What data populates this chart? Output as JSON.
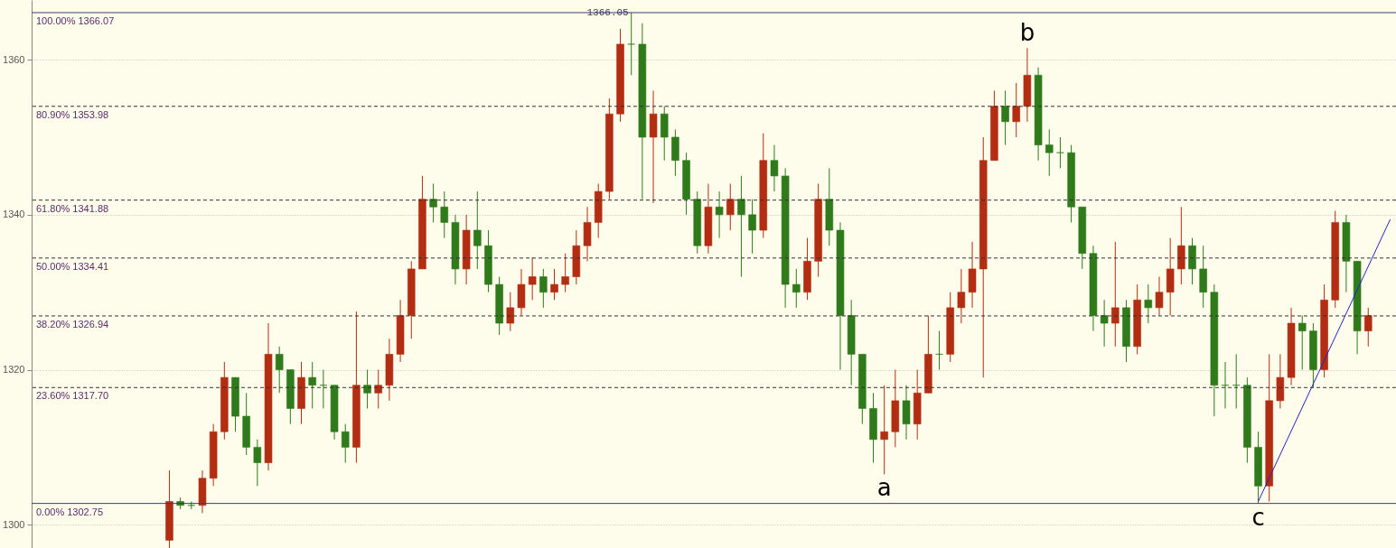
{
  "chart_data": {
    "type": "candlestick",
    "categories": [
      null,
      null,
      null,
      null,
      null,
      null,
      null,
      null,
      null,
      null,
      null,
      null,
      null,
      null,
      null,
      null,
      null,
      null,
      null,
      null,
      null,
      null,
      null,
      null,
      null,
      null,
      null,
      null,
      null,
      null,
      null,
      null,
      null,
      null,
      null,
      null,
      null,
      null,
      null,
      null,
      null,
      null,
      null,
      null,
      null,
      null,
      null,
      null,
      null,
      null,
      null,
      null,
      null,
      null,
      null,
      null,
      null,
      null,
      null,
      null,
      null,
      null,
      null,
      null,
      null,
      null,
      null,
      null,
      null,
      null,
      null,
      null,
      null,
      null,
      null,
      null,
      null,
      null,
      null,
      null,
      null,
      null,
      null,
      null,
      null,
      null,
      null,
      null,
      null,
      null,
      null,
      null,
      null,
      null,
      null,
      null,
      null,
      null,
      null,
      null,
      null,
      null,
      null,
      null,
      null,
      null,
      null,
      null,
      null,
      null,
      null,
      null,
      null,
      null,
      null,
      null,
      null,
      null,
      null,
      null,
      null,
      null,
      null,
      null
    ],
    "ohlc": [
      null,
      null,
      null,
      null,
      null,
      null,
      null,
      null,
      null,
      null,
      null,
      null,
      [
        1298,
        1307,
        1297,
        1303
      ],
      [
        1303,
        1303.5,
        1302,
        1302.5
      ],
      [
        1302.5,
        1303,
        1302,
        1302.5
      ],
      [
        1302.5,
        1307,
        1301.5,
        1306
      ],
      [
        1306,
        1313,
        1305,
        1312
      ],
      [
        1312,
        1321,
        1311,
        1319
      ],
      [
        1319,
        1319,
        1312,
        1314
      ],
      [
        1314,
        1317,
        1309,
        1310
      ],
      [
        1310,
        1311,
        1305,
        1308
      ],
      [
        1308,
        1326,
        1307,
        1322
      ],
      [
        1322,
        1323,
        1317,
        1320
      ],
      [
        1320,
        1320,
        1313,
        1315
      ],
      [
        1315,
        1321,
        1313,
        1319
      ],
      [
        1319,
        1321,
        1315,
        1318
      ],
      [
        1318,
        1320,
        1315,
        1318
      ],
      [
        1318,
        1318,
        1311,
        1312
      ],
      [
        1312,
        1313,
        1308,
        1310
      ],
      [
        1310,
        1327.5,
        1308,
        1318
      ],
      [
        1318,
        1320,
        1315,
        1317
      ],
      [
        1317,
        1320,
        1315,
        1318
      ],
      [
        1318,
        1324,
        1316,
        1322
      ],
      [
        1322,
        1329,
        1321,
        1327
      ],
      [
        1327,
        1334,
        1324,
        1333
      ],
      [
        1333,
        1345,
        1333,
        1342
      ],
      [
        1342,
        1344,
        1339,
        1341
      ],
      [
        1341,
        1343,
        1337,
        1339
      ],
      [
        1339,
        1340,
        1331,
        1333
      ],
      [
        1333,
        1340,
        1331,
        1338
      ],
      [
        1338,
        1343,
        1333,
        1336
      ],
      [
        1336,
        1338,
        1330,
        1331
      ],
      [
        1331,
        1332,
        1324.5,
        1326
      ],
      [
        1326,
        1330,
        1325,
        1328
      ],
      [
        1328,
        1333,
        1327,
        1331
      ],
      [
        1331,
        1334.5,
        1329,
        1332
      ],
      [
        1332,
        1333,
        1328,
        1330
      ],
      [
        1330,
        1333,
        1329,
        1331
      ],
      [
        1331,
        1335,
        1330,
        1332
      ],
      [
        1332,
        1338,
        1331,
        1336
      ],
      [
        1336,
        1341,
        1334,
        1339
      ],
      [
        1339,
        1344,
        1337,
        1343
      ],
      [
        1343,
        1355,
        1342,
        1353
      ],
      [
        1353,
        1364,
        1352,
        1362
      ],
      [
        1362,
        1366.05,
        1358,
        1362
      ],
      [
        1362,
        1364.7,
        1342,
        1350
      ],
      [
        1350,
        1356,
        1341.5,
        1353
      ],
      [
        1353,
        1354,
        1347,
        1350
      ],
      [
        1350,
        1351,
        1345,
        1347
      ],
      [
        1347,
        1348,
        1340,
        1342
      ],
      [
        1342,
        1343,
        1335,
        1336
      ],
      [
        1336,
        1344,
        1335,
        1341
      ],
      [
        1341,
        1343,
        1337,
        1340
      ],
      [
        1340,
        1344,
        1338,
        1342
      ],
      [
        1342,
        1345,
        1332,
        1340
      ],
      [
        1340,
        1342,
        1335,
        1338
      ],
      [
        1338,
        1350.5,
        1337,
        1347
      ],
      [
        1347,
        1349,
        1343,
        1345
      ],
      [
        1345,
        1346,
        1328,
        1331
      ],
      [
        1331,
        1333,
        1328,
        1330
      ],
      [
        1330,
        1337,
        1329,
        1334
      ],
      [
        1334,
        1344,
        1332,
        1342
      ],
      [
        1342,
        1346,
        1336,
        1338
      ],
      [
        1338,
        1339,
        1320,
        1327
      ],
      [
        1327,
        1329,
        1318,
        1322
      ],
      [
        1322,
        1322,
        1313,
        1315
      ],
      [
        1315,
        1317,
        1308,
        1311
      ],
      [
        1311,
        1318,
        1306.5,
        1312
      ],
      [
        1312,
        1320,
        1310,
        1316
      ],
      [
        1316,
        1318,
        1311,
        1313
      ],
      [
        1313,
        1320,
        1311,
        1317
      ],
      [
        1317,
        1327,
        1317,
        1322
      ],
      [
        1322,
        1325,
        1320,
        1322
      ],
      [
        1322,
        1330,
        1321,
        1328
      ],
      [
        1328,
        1333,
        1326,
        1330
      ],
      [
        1330,
        1336.5,
        1328,
        1333
      ],
      [
        1333,
        1350,
        1319,
        1347
      ],
      [
        1347,
        1356,
        1347,
        1354
      ],
      [
        1354,
        1356,
        1349,
        1352
      ],
      [
        1352,
        1357,
        1350,
        1354
      ],
      [
        1354,
        1361.5,
        1352,
        1358
      ],
      [
        1358,
        1359,
        1347,
        1349
      ],
      [
        1349,
        1351,
        1345,
        1348
      ],
      [
        1348,
        1350,
        1346,
        1348
      ],
      [
        1348,
        1349,
        1339,
        1341
      ],
      [
        1341,
        1341,
        1333,
        1335
      ],
      [
        1335,
        1336,
        1325,
        1327
      ],
      [
        1327,
        1329,
        1323,
        1326
      ],
      [
        1326,
        1336.5,
        1323,
        1328
      ],
      [
        1328,
        1329,
        1321,
        1323
      ],
      [
        1323,
        1331,
        1322,
        1329
      ],
      [
        1329,
        1331,
        1326,
        1328
      ],
      [
        1328,
        1332,
        1327,
        1330
      ],
      [
        1330,
        1337,
        1327,
        1333
      ],
      [
        1333,
        1341,
        1331,
        1336
      ],
      [
        1336,
        1337,
        1331,
        1333
      ],
      [
        1333,
        1336,
        1328,
        1330
      ],
      [
        1330,
        1331,
        1314,
        1318
      ],
      [
        1318,
        1321,
        1315,
        1318
      ],
      [
        1318,
        1322,
        1315,
        1318
      ],
      [
        1318,
        1319,
        1308,
        1310
      ],
      [
        1310,
        1312,
        1302.75,
        1305
      ],
      [
        1305,
        1322,
        1303,
        1316
      ],
      [
        1316,
        1322,
        1315,
        1319
      ],
      [
        1319,
        1328,
        1318,
        1326
      ],
      [
        1326,
        1327,
        1320,
        1325
      ],
      [
        1325,
        1326,
        1317.7,
        1320
      ],
      [
        1320,
        1331,
        1319,
        1329
      ],
      [
        1329,
        1340.5,
        1328,
        1339
      ],
      [
        1339,
        1340,
        1330,
        1334
      ],
      [
        1334,
        1334,
        1322,
        1325
      ],
      [
        1325,
        1328,
        1323,
        1327
      ],
      null,
      null
    ],
    "colors": [
      null,
      null,
      null,
      null,
      null,
      null,
      null,
      null,
      null,
      null,
      null,
      null,
      "#b22d12",
      "#2f7a1b",
      "#2f7a1b",
      "#b22d12",
      "#b22d12",
      "#b22d12",
      "#2f7a1b",
      "#2f7a1b",
      "#2f7a1b",
      "#b22d12",
      "#2f7a1b",
      "#2f7a1b",
      "#b22d12",
      "#2f7a1b",
      "#2f7a1b",
      "#2f7a1b",
      "#2f7a1b",
      "#b22d12",
      "#2f7a1b",
      "#b22d12",
      "#b22d12",
      "#b22d12",
      "#b22d12",
      "#b22d12",
      "#2f7a1b",
      "#2f7a1b",
      "#2f7a1b",
      "#b22d12",
      "#2f7a1b",
      "#2f7a1b",
      "#2f7a1b",
      "#b22d12",
      "#b22d12",
      "#b22d12",
      "#2f7a1b",
      "#b22d12",
      "#b22d12",
      "#b22d12",
      "#b22d12",
      "#b22d12",
      "#b22d12",
      "#b22d12",
      "#2f7a1b",
      "#2f7a1b",
      "#b22d12",
      "#2f7a1b",
      "#2f7a1b",
      "#2f7a1b",
      "#2f7a1b",
      "#b22d12",
      "#2f7a1b",
      "#b22d12",
      "#2f7a1b",
      "#2f7a1b",
      "#b22d12",
      "#2f7a1b",
      "#2f7a1b",
      "#2f7a1b",
      "#b22d12",
      "#b22d12",
      "#2f7a1b",
      "#2f7a1b",
      "#2f7a1b",
      "#2f7a1b",
      "#2f7a1b",
      "#b22d12",
      "#b22d12",
      "#2f7a1b",
      "#b22d12",
      "#b22d12",
      "#2f7a1b",
      "#b22d12",
      "#b22d12",
      "#b22d12",
      "#b22d12",
      "#b22d12",
      "#2f7a1b",
      "#b22d12",
      "#b22d12",
      "#2f7a1b",
      "#2f7a1b",
      "#2f7a1b",
      "#2f7a1b",
      "#2f7a1b",
      "#2f7a1b",
      "#2f7a1b",
      "#b22d12",
      "#2f7a1b",
      "#b22d12",
      "#2f7a1b",
      "#b22d12",
      "#b22d12",
      "#b22d12",
      "#2f7a1b",
      "#2f7a1b",
      "#2f7a1b",
      "#2f7a1b",
      "#2f7a1b",
      "#2f7a1b",
      "#2f7a1b",
      "#b22d12",
      "#b22d12",
      "#b22d12",
      "#2f7a1b",
      "#2f7a1b",
      "#b22d12",
      "#b22d12",
      "#2f7a1b",
      "#2f7a1b",
      "#b22d12",
      null,
      null
    ],
    "series": [
      {
        "type": "line",
        "color": "#2323c8",
        "values": [
          null,
          null,
          null,
          null,
          null,
          null,
          null,
          null,
          null,
          null,
          null,
          null,
          null,
          null,
          null,
          null,
          null,
          null,
          null,
          null,
          null,
          null,
          null,
          null,
          null,
          null,
          null,
          null,
          null,
          null,
          null,
          null,
          null,
          null,
          null,
          null,
          null,
          null,
          null,
          null,
          null,
          null,
          null,
          null,
          null,
          null,
          null,
          null,
          null,
          null,
          null,
          null,
          null,
          null,
          null,
          null,
          null,
          null,
          null,
          null,
          null,
          null,
          null,
          null,
          null,
          null,
          null,
          null,
          null,
          null,
          null,
          null,
          null,
          null,
          null,
          null,
          null,
          null,
          null,
          null,
          null,
          null,
          null,
          null,
          null,
          null,
          null,
          null,
          null,
          null,
          null,
          null,
          null,
          null,
          null,
          null,
          null,
          null,
          null,
          null,
          null,
          null,
          null,
          null,
          null,
          null,
          null,
          null,
          null,
          null,
          null,
          1303,
          null,
          null,
          null,
          null,
          null,
          null,
          null,
          null,
          null,
          null,
          null,
          1339.4
        ]
      }
    ],
    "ylim": [
      1297,
      1367.7
    ],
    "yticks": [
      1300,
      1320,
      1340,
      1360
    ],
    "grid": "y",
    "tick_labels": "y",
    "ref_lines": [
      {
        "axis": "y",
        "value": 1366.07,
        "label": "100.00% 1366.07",
        "color": "#3d3a78",
        "line_style": "solid"
      },
      {
        "axis": "y",
        "value": 1353.98,
        "label": "80.90% 1353.98",
        "color": "#333333",
        "line_style": "dashed"
      },
      {
        "axis": "y",
        "value": 1341.88,
        "label": "61.80% 1341.88",
        "color": "#333333",
        "line_style": "dashed"
      },
      {
        "axis": "y",
        "value": 1334.41,
        "label": "50.00% 1334.41",
        "color": "#333333",
        "line_style": "dashed"
      },
      {
        "axis": "y",
        "value": 1326.94,
        "label": "38.20% 1326.94",
        "color": "#333333",
        "line_style": "dashed"
      },
      {
        "axis": "y",
        "value": 1317.7,
        "label": "23.60% 1317.70",
        "color": "#333333",
        "line_style": "dashed"
      },
      {
        "axis": "y",
        "value": 1302.75,
        "label": "0.00% 1302.75",
        "color": "#3d3a78",
        "line_style": "solid"
      }
    ],
    "annotations": [
      {
        "text": "1366.05",
        "y": 1366.05
      },
      {
        "text": "a",
        "y": 1306.5
      },
      {
        "text": "b",
        "y": 1361.5
      },
      {
        "text": "c",
        "y": 1302.75
      }
    ]
  }
}
